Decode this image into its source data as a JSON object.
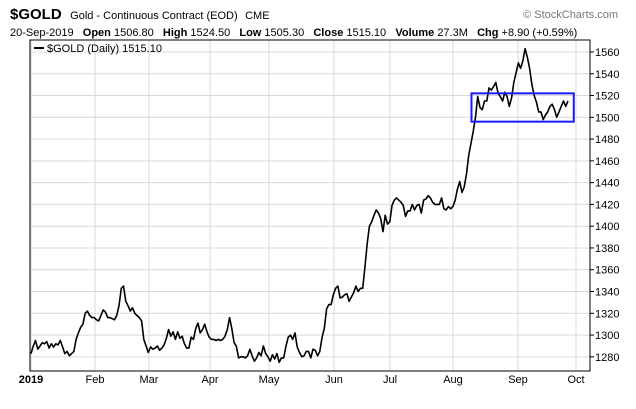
{
  "header": {
    "symbol": "$GOLD",
    "description": "Gold - Continuous Contract (EOD)",
    "exchange": "CME",
    "brand": "© StockCharts.com",
    "date": "20-Sep-2019",
    "open_label": "Open",
    "open": "1506.80",
    "high_label": "High",
    "high": "1524.50",
    "low_label": "Low",
    "low": "1505.30",
    "close_label": "Close",
    "close": "1515.10",
    "volume_label": "Volume",
    "volume": "27.3M",
    "chg_label": "Chg",
    "chg": "+8.90 (+0.59%)"
  },
  "legend": {
    "label": "$GOLD (Daily) 1515.10"
  },
  "colors": {
    "line": "#000000",
    "highlight_box": "#1a1aff",
    "grid": "#d9d9d9"
  },
  "chart_data": {
    "type": "line",
    "title": "$GOLD Gold - Continuous Contract (EOD) CME",
    "series": [
      {
        "name": "$GOLD (Daily)",
        "values": [
          1283,
          1290,
          1295,
          1287,
          1290,
          1293,
          1292,
          1294,
          1288,
          1292,
          1289,
          1292,
          1291,
          1295,
          1289,
          1283,
          1285,
          1281,
          1283,
          1285,
          1296,
          1302,
          1307,
          1310,
          1320,
          1322,
          1318,
          1316,
          1316,
          1314,
          1313,
          1318,
          1323,
          1321,
          1316,
          1316,
          1315,
          1314,
          1318,
          1327,
          1343,
          1345,
          1331,
          1327,
          1322,
          1325,
          1320,
          1318,
          1316,
          1313,
          1296,
          1290,
          1284,
          1289,
          1287,
          1288,
          1290,
          1286,
          1288,
          1291,
          1297,
          1305,
          1299,
          1303,
          1296,
          1303,
          1297,
          1299,
          1292,
          1288,
          1288,
          1298,
          1296,
          1306,
          1311,
          1302,
          1305,
          1310,
          1303,
          1298,
          1296,
          1296,
          1295,
          1296,
          1295,
          1296,
          1299,
          1305,
          1316,
          1306,
          1293,
          1290,
          1279,
          1280,
          1280,
          1279,
          1281,
          1287,
          1281,
          1276,
          1279,
          1284,
          1281,
          1290,
          1283,
          1280,
          1276,
          1282,
          1278,
          1283,
          1275,
          1279,
          1279,
          1290,
          1298,
          1300,
          1296,
          1302,
          1289,
          1284,
          1280,
          1281,
          1285,
          1285,
          1279,
          1287,
          1286,
          1281,
          1285,
          1298,
          1306,
          1324,
          1328,
          1328,
          1337,
          1343,
          1345,
          1334,
          1335,
          1337,
          1338,
          1331,
          1335,
          1339,
          1345,
          1340,
          1343,
          1343,
          1362,
          1384,
          1400,
          1404,
          1410,
          1415,
          1412,
          1407,
          1395,
          1410,
          1402,
          1404,
          1419,
          1424,
          1426,
          1424,
          1422,
          1419,
          1409,
          1414,
          1414,
          1420,
          1415,
          1419,
          1420,
          1412,
          1424,
          1425,
          1428,
          1426,
          1422,
          1420,
          1420,
          1420,
          1426,
          1416,
          1415,
          1418,
          1416,
          1418,
          1424,
          1434,
          1441,
          1431,
          1436,
          1448,
          1465,
          1476,
          1487,
          1500,
          1519,
          1509,
          1507,
          1515,
          1515,
          1527,
          1525,
          1528,
          1532,
          1522,
          1519,
          1515,
          1523,
          1519,
          1510,
          1518,
          1532,
          1541,
          1550,
          1545,
          1552,
          1563,
          1555,
          1545,
          1530,
          1520,
          1514,
          1505,
          1505,
          1498,
          1502,
          1505,
          1510,
          1512,
          1507,
          1500,
          1505,
          1510,
          1515,
          1510,
          1515
        ]
      }
    ],
    "x_tick_labels": [
      "2019",
      "Feb",
      "Mar",
      "Apr",
      "May",
      "Jun",
      "Jul",
      "Aug",
      "Sep",
      "Oct"
    ],
    "y_ticks": [
      1280,
      1300,
      1320,
      1340,
      1360,
      1380,
      1400,
      1420,
      1440,
      1460,
      1480,
      1500,
      1520,
      1540,
      1560
    ],
    "ylim": [
      1267,
      1571
    ],
    "grid": true,
    "annotation": {
      "type": "highlight-box",
      "series_index_range": [
        197,
        241
      ],
      "y_range": [
        1496,
        1522
      ]
    }
  }
}
